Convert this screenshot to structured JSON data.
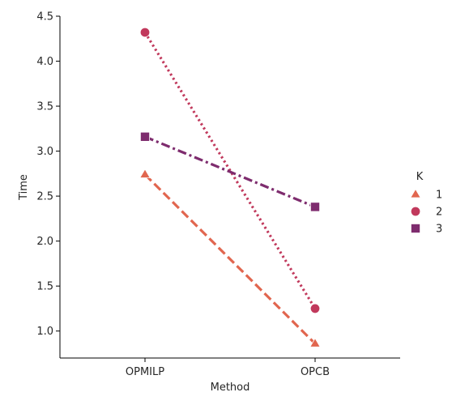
{
  "chart_data": {
    "type": "line",
    "xlabel": "Method",
    "ylabel": "Time",
    "categories": [
      "OPMILP",
      "OPCB"
    ],
    "ylim": [
      0.7,
      4.5
    ],
    "yticks": [
      1.0,
      1.5,
      2.0,
      2.5,
      3.0,
      3.5,
      4.0,
      4.5
    ],
    "ytick_labels": [
      "1.0",
      "1.5",
      "2.0",
      "2.5",
      "3.0",
      "3.5",
      "4.0",
      "4.5"
    ],
    "grid": false,
    "legend": {
      "title": "K",
      "placement": "center-right"
    },
    "series": [
      {
        "name": "1",
        "values": [
          2.74,
          0.86
        ],
        "color": "#e1664f",
        "marker": "triangle",
        "linestyle": "dashed"
      },
      {
        "name": "2",
        "values": [
          4.32,
          1.25
        ],
        "color": "#c1395c",
        "marker": "circle",
        "linestyle": "dotted"
      },
      {
        "name": "3",
        "values": [
          3.16,
          2.38
        ],
        "color": "#7e2c6e",
        "marker": "square",
        "linestyle": "dashdot"
      }
    ]
  }
}
